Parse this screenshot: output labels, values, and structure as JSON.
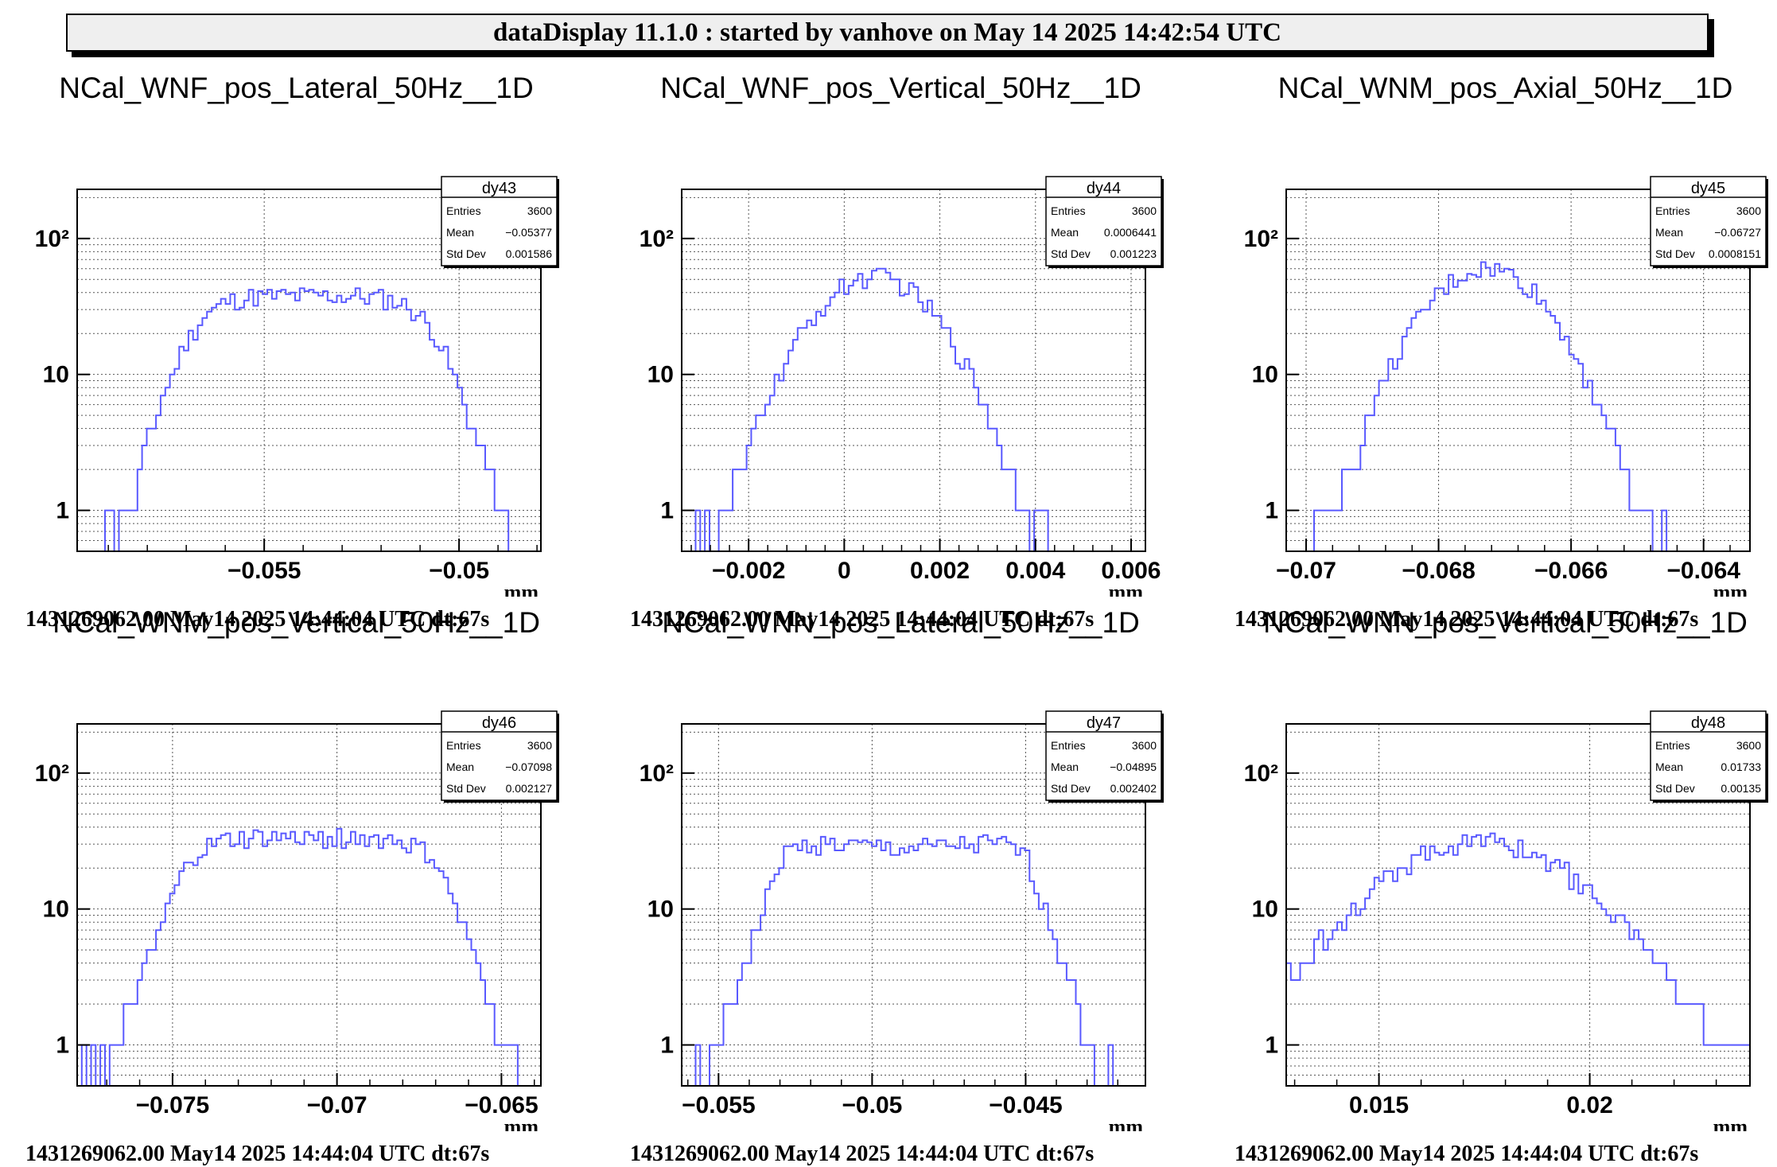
{
  "header": {
    "title": "dataDisplay 11.1.0 : started by vanhove on May 14 2025 14:42:54 UTC"
  },
  "chart_data": [
    {
      "type": "histogram",
      "title": "NCal_WNF_pos_Lateral_50Hz__1D",
      "xlabel": "mm",
      "ylabel": "",
      "yscale": "log",
      "xlim": [
        -0.0598,
        -0.0479
      ],
      "ylim": [
        0.5,
        230
      ],
      "xticks": [
        -0.055,
        -0.05
      ],
      "xtick_labels": [
        "−0.055",
        "−0.05"
      ],
      "yticks": [
        1,
        10,
        100
      ],
      "ytick_labels": [
        "1",
        "10",
        "10²"
      ],
      "grid": true,
      "color": "#5959ff",
      "stats": {
        "name": "dy43",
        "entries_label": "Entries",
        "entries": "3600",
        "mean_label": "Mean",
        "mean": "−0.05377",
        "stddev_label": "Std Dev",
        "stddev": "0.001586"
      },
      "footer": "1431269062.00 May14 2025 14:44:04 UTC dt:67s",
      "shape": "plateau",
      "lo": -0.0569,
      "hi": -0.0506,
      "peak": 38,
      "edge_width": 0.00045
    },
    {
      "type": "histogram",
      "title": "NCal_WNF_pos_Vertical_50Hz__1D",
      "xlabel": "mm",
      "ylabel": "",
      "yscale": "log",
      "xlim": [
        -0.0034,
        0.0063
      ],
      "ylim": [
        0.5,
        230
      ],
      "xticks": [
        -0.002,
        0,
        0.002,
        0.004,
        0.006
      ],
      "xtick_labels": [
        "−0.002",
        "0",
        "0.002",
        "0.004",
        "0.006"
      ],
      "yticks": [
        1,
        10,
        100
      ],
      "ytick_labels": [
        "1",
        "10",
        "10²"
      ],
      "grid": true,
      "color": "#5959ff",
      "stats": {
        "name": "dy44",
        "entries_label": "Entries",
        "entries": "3600",
        "mean_label": "Mean",
        "mean": "0.0006441",
        "stddev_label": "Std Dev",
        "stddev": "0.001223"
      },
      "footer": "1431269062.00 May14 2025 14:44:04 UTC dt:67s",
      "shape": "gauss",
      "center": 0.00064,
      "sigma": 0.0011,
      "peak": 52,
      "lo": -0.0031,
      "hi": 0.0043
    },
    {
      "type": "histogram",
      "title": "NCal_WNM_pos_Axial_50Hz__1D",
      "xlabel": "mm",
      "ylabel": "",
      "yscale": "log",
      "xlim": [
        -0.0703,
        -0.0633
      ],
      "ylim": [
        0.5,
        230
      ],
      "xticks": [
        -0.07,
        -0.068,
        -0.066,
        -0.064
      ],
      "xtick_labels": [
        "−0.07",
        "−0.068",
        "−0.066",
        "−0.064"
      ],
      "yticks": [
        1,
        10,
        100
      ],
      "ytick_labels": [
        "1",
        "10",
        "10²"
      ],
      "grid": true,
      "color": "#5959ff",
      "stats": {
        "name": "dy45",
        "entries_label": "Entries",
        "entries": "3600",
        "mean_label": "Mean",
        "mean": "−0.06727",
        "stddev_label": "Std Dev",
        "stddev": "0.0008151"
      },
      "footer": "1431269062.00 May14 2025 14:44:04 UTC dt:67s",
      "shape": "gauss",
      "center": -0.06727,
      "sigma": 0.00079,
      "peak": 60,
      "lo": -0.0698,
      "hi": -0.0649
    },
    {
      "type": "histogram",
      "title": "NCal_WNM_pos_Vertical_50Hz__1D",
      "xlabel": "mm",
      "ylabel": "",
      "yscale": "log",
      "xlim": [
        -0.0779,
        -0.0638
      ],
      "ylim": [
        0.5,
        230
      ],
      "xticks": [
        -0.075,
        -0.07,
        -0.065
      ],
      "xtick_labels": [
        "−0.075",
        "−0.07",
        "−0.065"
      ],
      "yticks": [
        1,
        10,
        100
      ],
      "ytick_labels": [
        "1",
        "10",
        "10²"
      ],
      "grid": true,
      "color": "#5959ff",
      "stats": {
        "name": "dy46",
        "entries_label": "Entries",
        "entries": "3600",
        "mean_label": "Mean",
        "mean": "−0.07098",
        "stddev_label": "Std Dev",
        "stddev": "0.002127"
      },
      "footer": "1431269062.00 May14 2025 14:44:04 UTC dt:67s",
      "shape": "horns",
      "lo": -0.0745,
      "hi": -0.067,
      "peak": 33,
      "horn": 12,
      "edge_width": 0.0006
    },
    {
      "type": "histogram",
      "title": "NCal_WNN_pos_Lateral_50Hz__1D",
      "xlabel": "mm",
      "ylabel": "",
      "yscale": "log",
      "xlim": [
        -0.0562,
        -0.0411
      ],
      "ylim": [
        0.5,
        230
      ],
      "xticks": [
        -0.055,
        -0.05,
        -0.045
      ],
      "xtick_labels": [
        "−0.055",
        "−0.05",
        "−0.045"
      ],
      "yticks": [
        1,
        10,
        100
      ],
      "ytick_labels": [
        "1",
        "10",
        "10²"
      ],
      "grid": true,
      "color": "#5959ff",
      "stats": {
        "name": "dy47",
        "entries_label": "Entries",
        "entries": "3600",
        "mean_label": "Mean",
        "mean": "−0.04895",
        "stddev_label": "Std Dev",
        "stddev": "0.002402"
      },
      "footer": "1431269062.00 May14 2025 14:44:04 UTC dt:67s",
      "shape": "horns",
      "lo": -0.0529,
      "hi": -0.045,
      "peak": 28,
      "horn": 22,
      "edge_width": 0.0006
    },
    {
      "type": "histogram",
      "title": "NCal_WNN_pos_Vertical_50Hz__1D",
      "xlabel": "mm",
      "ylabel": "",
      "yscale": "log",
      "xlim": [
        0.0128,
        0.0238
      ],
      "ylim": [
        0.5,
        230
      ],
      "xticks": [
        0.015,
        0.02
      ],
      "xtick_labels": [
        "0.015",
        "0.02"
      ],
      "yticks": [
        1,
        10,
        100
      ],
      "ytick_labels": [
        "1",
        "10",
        "10²"
      ],
      "grid": true,
      "color": "#5959ff",
      "stats": {
        "name": "dy48",
        "entries_label": "Entries",
        "entries": "3600",
        "mean_label": "Mean",
        "mean": "0.01733",
        "stddev_label": "Std Dev",
        "stddev": "0.00135"
      },
      "footer": "1431269062.00 May14 2025 14:44:04 UTC dt:67s",
      "shape": "plateau",
      "lo": 0.0158,
      "hi": 0.019,
      "peak": 48,
      "edge_width": 0.0011
    }
  ]
}
